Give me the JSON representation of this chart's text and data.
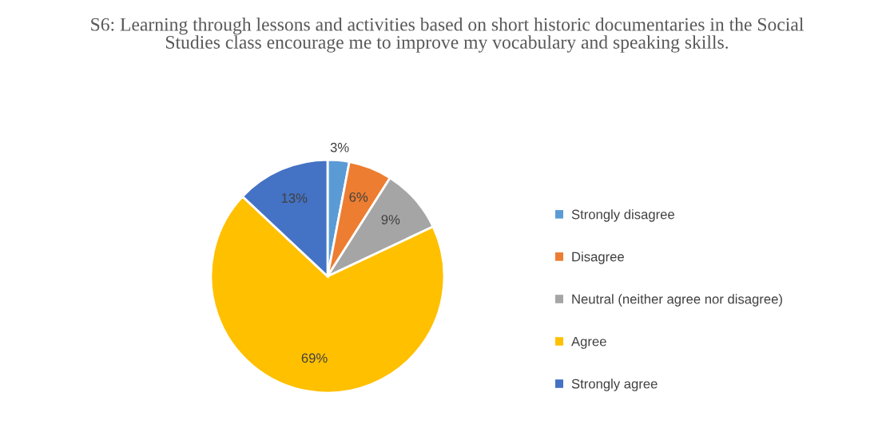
{
  "chart_data": {
    "type": "pie",
    "title": "S6: Learning through lessons and activities based on short historic documentaries in the Social Studies class encourage me to improve my vocabulary and speaking skills.",
    "categories": [
      "Strongly disagree",
      "Disagree",
      "Neutral (neither agree nor disagree)",
      "Agree",
      "Strongly agree"
    ],
    "values": [
      3,
      6,
      9,
      69,
      13
    ],
    "value_labels": [
      "3%",
      "6%",
      "9%",
      "69%",
      "13%"
    ],
    "colors": [
      "#5b9bd5",
      "#ed7d31",
      "#a5a5a5",
      "#ffc000",
      "#4472c4"
    ],
    "legend": "right"
  }
}
